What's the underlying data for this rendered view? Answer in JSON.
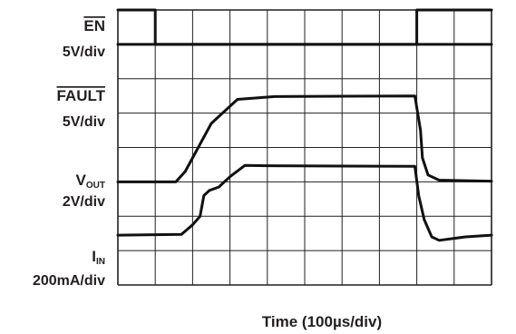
{
  "chart_data": {
    "type": "line",
    "grid": true,
    "divisions": {
      "x": 10,
      "y": 8
    },
    "xlabel": "Time (100µs/div)",
    "channels": [
      {
        "key": "en",
        "name": "EN",
        "name_sub": "",
        "overbar": true,
        "scale": "5V/div",
        "reference_div": 7,
        "points": [
          [
            0,
            1
          ],
          [
            1,
            1
          ],
          [
            1,
            0
          ],
          [
            8,
            0
          ],
          [
            8,
            1
          ],
          [
            10,
            1
          ]
        ]
      },
      {
        "key": "fault",
        "name": "FAULT",
        "name_sub": "",
        "overbar": true,
        "scale": "5V/div",
        "reference_div": 6,
        "points": [
          [
            0,
            1
          ],
          [
            10,
            1
          ]
        ]
      },
      {
        "key": "vout",
        "name": "V",
        "name_sub": "OUT",
        "overbar": false,
        "scale": "2V/div",
        "reference_div": 3,
        "points": [
          [
            0,
            0
          ],
          [
            1.55,
            0
          ],
          [
            1.8,
            0.3
          ],
          [
            2.5,
            1.7
          ],
          [
            3.2,
            2.4
          ],
          [
            4.2,
            2.48
          ],
          [
            7.95,
            2.5
          ],
          [
            8.1,
            1.5
          ],
          [
            8.15,
            0.7
          ],
          [
            8.3,
            0.2
          ],
          [
            8.6,
            0.05
          ],
          [
            10,
            0.02
          ]
        ]
      },
      {
        "key": "iin",
        "name": "I",
        "name_sub": "IN",
        "overbar": false,
        "scale": "200mA/div",
        "reference_div": 1,
        "points": [
          [
            0,
            0.45
          ],
          [
            1.7,
            0.47
          ],
          [
            2.0,
            0.75
          ],
          [
            2.2,
            1.0
          ],
          [
            2.3,
            1.6
          ],
          [
            2.45,
            1.75
          ],
          [
            2.7,
            1.85
          ],
          [
            3.0,
            2.15
          ],
          [
            3.4,
            2.48
          ],
          [
            4.0,
            2.47
          ],
          [
            7.95,
            2.45
          ],
          [
            8.05,
            1.6
          ],
          [
            8.2,
            0.9
          ],
          [
            8.4,
            0.4
          ],
          [
            8.6,
            0.3
          ],
          [
            9.3,
            0.4
          ],
          [
            10,
            0.45
          ]
        ]
      }
    ]
  }
}
